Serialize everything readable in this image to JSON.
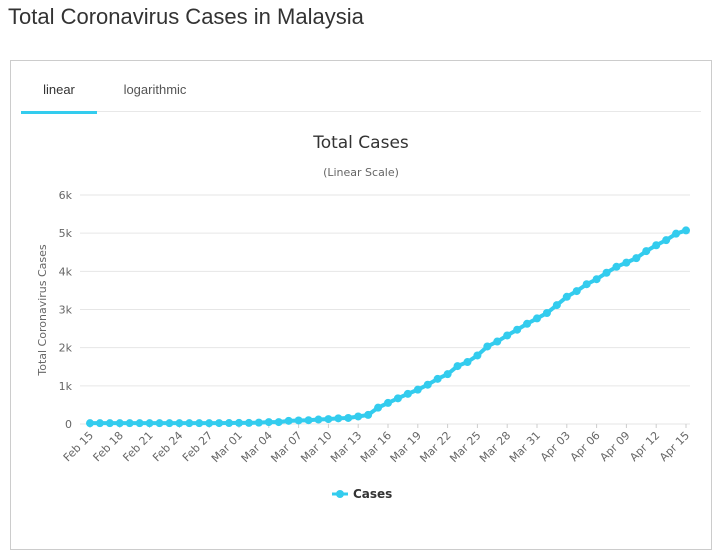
{
  "page": {
    "title": "Total Coronavirus Cases in Malaysia"
  },
  "tabs": [
    {
      "label": "linear"
    },
    {
      "label": "logarithmic"
    }
  ],
  "colors": {
    "series": "#33ccee",
    "tab_active": "#33ccee",
    "grid": "#e6e6e6"
  },
  "chart_data": {
    "type": "line",
    "title": "Total Cases",
    "subtitle": "(Linear Scale)",
    "ylabel": "Total Coronavirus Cases",
    "xlabel": "",
    "ylim": [
      0,
      6000
    ],
    "yticks": [
      "0",
      "1k",
      "2k",
      "3k",
      "4k",
      "5k",
      "6k"
    ],
    "xticks": [
      "Feb 15",
      "Feb 18",
      "Feb 21",
      "Feb 24",
      "Feb 27",
      "Mar 01",
      "Mar 04",
      "Mar 07",
      "Mar 10",
      "Mar 13",
      "Mar 16",
      "Mar 19",
      "Mar 22",
      "Mar 25",
      "Mar 28",
      "Mar 31",
      "Apr 03",
      "Apr 06",
      "Apr 09",
      "Apr 12",
      "Apr 15"
    ],
    "x": [
      "Feb 15",
      "Feb 16",
      "Feb 17",
      "Feb 18",
      "Feb 19",
      "Feb 20",
      "Feb 21",
      "Feb 22",
      "Feb 23",
      "Feb 24",
      "Feb 25",
      "Feb 26",
      "Feb 27",
      "Feb 28",
      "Feb 29",
      "Mar 01",
      "Mar 02",
      "Mar 03",
      "Mar 04",
      "Mar 05",
      "Mar 06",
      "Mar 07",
      "Mar 08",
      "Mar 09",
      "Mar 10",
      "Mar 11",
      "Mar 12",
      "Mar 13",
      "Mar 14",
      "Mar 15",
      "Mar 16",
      "Mar 17",
      "Mar 18",
      "Mar 19",
      "Mar 20",
      "Mar 21",
      "Mar 22",
      "Mar 23",
      "Mar 24",
      "Mar 25",
      "Mar 26",
      "Mar 27",
      "Mar 28",
      "Mar 29",
      "Mar 30",
      "Mar 31",
      "Apr 01",
      "Apr 02",
      "Apr 03",
      "Apr 04",
      "Apr 05",
      "Apr 06",
      "Apr 07",
      "Apr 08",
      "Apr 09",
      "Apr 10",
      "Apr 11",
      "Apr 12",
      "Apr 13",
      "Apr 14",
      "Apr 15"
    ],
    "series": [
      {
        "name": "Cases",
        "values": [
          22,
          22,
          22,
          22,
          22,
          22,
          22,
          22,
          22,
          22,
          22,
          22,
          22,
          24,
          25,
          29,
          29,
          36,
          50,
          50,
          83,
          93,
          99,
          117,
          129,
          149,
          158,
          197,
          238,
          428,
          553,
          673,
          790,
          900,
          1030,
          1183,
          1306,
          1518,
          1624,
          1796,
          2031,
          2161,
          2320,
          2470,
          2626,
          2766,
          2908,
          3116,
          3333,
          3483,
          3662,
          3793,
          3963,
          4119,
          4228,
          4346,
          4530,
          4683,
          4817,
          4987,
          5072
        ]
      }
    ],
    "legend": "bottom-center",
    "grid": true
  }
}
